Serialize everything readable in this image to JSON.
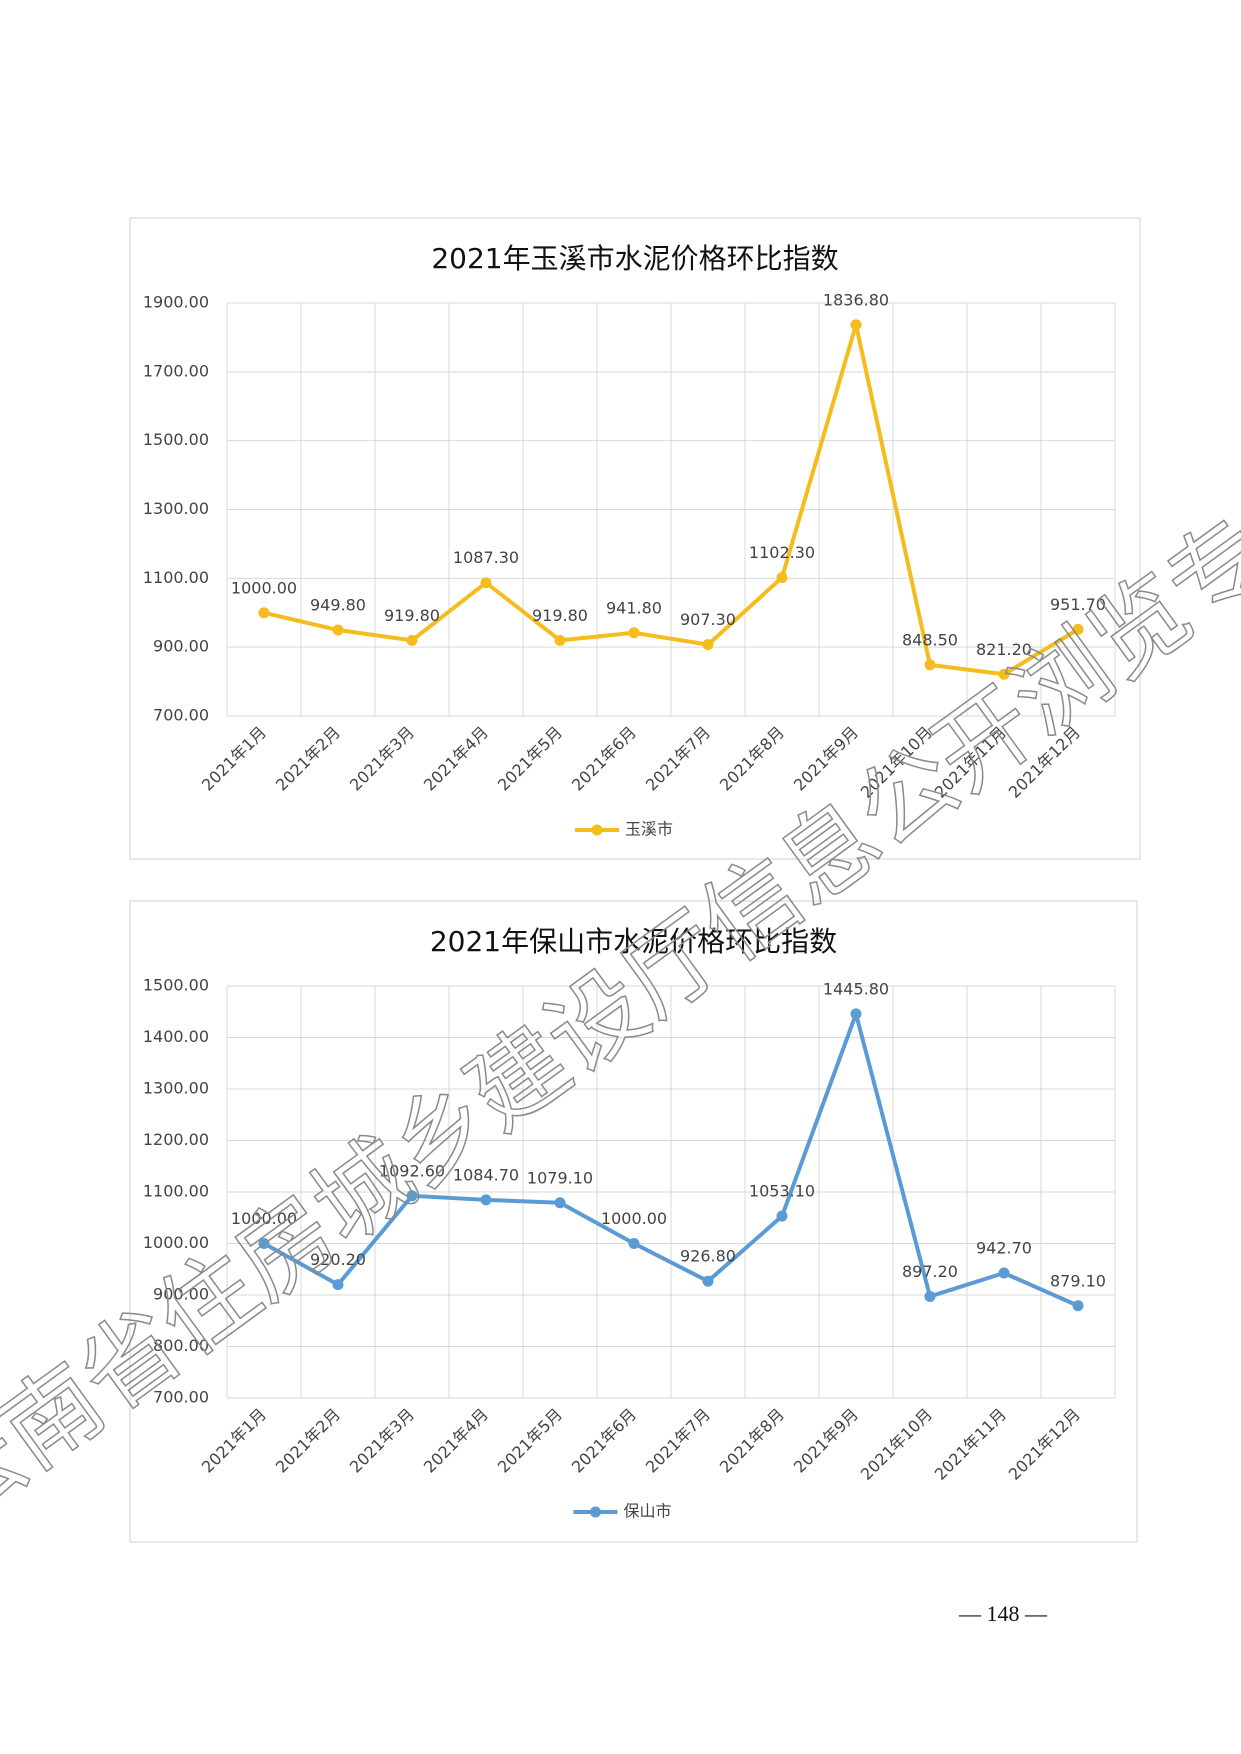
{
  "chart_data": [
    {
      "type": "line",
      "title": "2021年玉溪市水泥价格环比指数",
      "categories": [
        "2021年1月",
        "2021年2月",
        "2021年3月",
        "2021年4月",
        "2021年5月",
        "2021年6月",
        "2021年7月",
        "2021年8月",
        "2021年9月",
        "2021年10月",
        "2021年11月",
        "2021年12月"
      ],
      "series": [
        {
          "name": "玉溪市",
          "color": "#f4bc1c",
          "values": [
            1000,
            949.8,
            919.8,
            1087.3,
            919.8,
            941.8,
            907.3,
            1102.3,
            1836.8,
            848.5,
            821.2,
            951.7
          ],
          "value_labels": [
            "1000.00",
            "949.80",
            "919.80",
            "1087.30",
            "919.80",
            "941.80",
            "907.30",
            "1102.30",
            "1836.80",
            "848.50",
            "821.20",
            "951.70"
          ]
        }
      ],
      "ylim": [
        700,
        1900
      ],
      "yticks": [
        {
          "value": 700,
          "label": "700.00"
        },
        {
          "value": 900,
          "label": "900.00"
        },
        {
          "value": 1100,
          "label": "1100.00"
        },
        {
          "value": 1300,
          "label": "1300.00"
        },
        {
          "value": 1500,
          "label": "1500.00"
        },
        {
          "value": 1700,
          "label": "1700.00"
        },
        {
          "value": 1900,
          "label": "1900.00"
        }
      ],
      "grid": true,
      "legend": "bottom"
    },
    {
      "type": "line",
      "title": "2021年保山市水泥价格环比指数",
      "categories": [
        "2021年1月",
        "2021年2月",
        "2021年3月",
        "2021年4月",
        "2021年5月",
        "2021年6月",
        "2021年7月",
        "2021年8月",
        "2021年9月",
        "2021年10月",
        "2021年11月",
        "2021年12月"
      ],
      "series": [
        {
          "name": "保山市",
          "color": "#5b9bd5",
          "values": [
            1000,
            920.2,
            1092.6,
            1084.7,
            1079.1,
            1000,
            926.8,
            1053.1,
            1445.8,
            897.2,
            942.7,
            879.1
          ],
          "value_labels": [
            "1000.00",
            "920.20",
            "1092.60",
            "1084.70",
            "1079.10",
            "1000.00",
            "926.80",
            "1053.10",
            "1445.80",
            "897.20",
            "942.70",
            "879.10"
          ]
        }
      ],
      "ylim": [
        700,
        1500
      ],
      "yticks": [
        {
          "value": 700,
          "label": "700.00"
        },
        {
          "value": 800,
          "label": "800.00"
        },
        {
          "value": 900,
          "label": "900.00"
        },
        {
          "value": 1000,
          "label": "1000.00"
        },
        {
          "value": 1100,
          "label": "1100.00"
        },
        {
          "value": 1200,
          "label": "1200.00"
        },
        {
          "value": 1300,
          "label": "1300.00"
        },
        {
          "value": 1400,
          "label": "1400.00"
        },
        {
          "value": 1500,
          "label": "1500.00"
        }
      ],
      "grid": true,
      "legend": "bottom"
    }
  ],
  "watermark": "云南省住房城乡建设厅信息公开浏览专用",
  "page_number": "— 148 —"
}
